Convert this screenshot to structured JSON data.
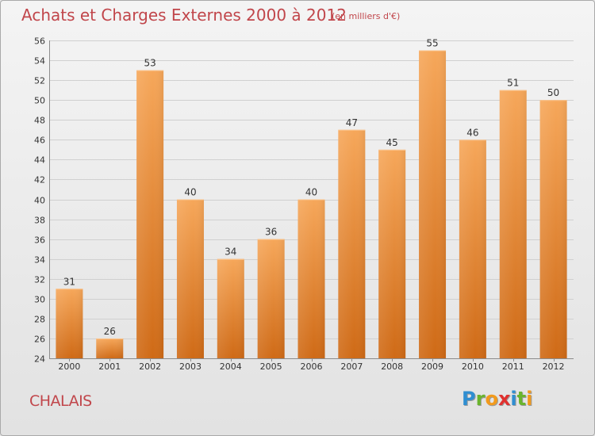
{
  "title": "Achats et Charges Externes 2000 à 2012",
  "unit_note": "(en milliers d'€)",
  "commune": "CHALAIS",
  "logo": {
    "letters": [
      "P",
      "r",
      "o",
      "x",
      "i",
      "t",
      "i"
    ],
    "colors": [
      "#2f8ed1",
      "#6ab42d",
      "#f29a1c",
      "#e0312f",
      "#2f8ed1",
      "#6ab42d",
      "#f29a1c"
    ]
  },
  "colors": {
    "bar_top": "#f6a75a",
    "bar_bottom": "#cf6a16",
    "text_accent": "#c1464b"
  },
  "chart_data": {
    "type": "bar",
    "title": "Achats et Charges Externes 2000 à 2012",
    "subtitle": "(en milliers d'€)",
    "categories": [
      "2000",
      "2001",
      "2002",
      "2003",
      "2004",
      "2005",
      "2006",
      "2007",
      "2008",
      "2009",
      "2010",
      "2011",
      "2012"
    ],
    "values": [
      31,
      26,
      53,
      40,
      34,
      36,
      40,
      47,
      45,
      55,
      46,
      51,
      50
    ],
    "ylim": [
      24,
      56
    ],
    "yticks": [
      24,
      26,
      28,
      30,
      32,
      34,
      36,
      38,
      40,
      42,
      44,
      46,
      48,
      50,
      52,
      54,
      56
    ],
    "grid": true,
    "xlabel": "",
    "ylabel": ""
  }
}
